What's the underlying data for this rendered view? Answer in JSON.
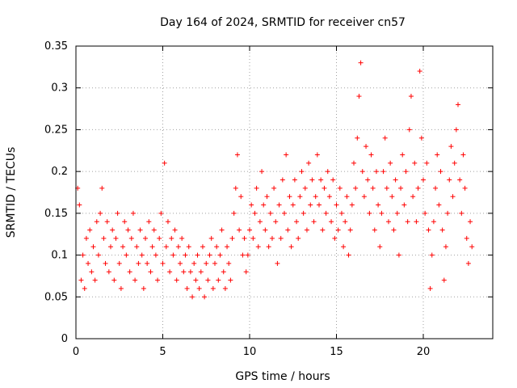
{
  "chart_data": {
    "type": "scatter",
    "title": "Day 164 of 2024, SRMTID for receiver cn57",
    "xlabel": "GPS time / hours",
    "ylabel": "SRMTID / TECUs",
    "xlim": [
      0,
      24
    ],
    "ylim": [
      0,
      0.35
    ],
    "xticks": [
      0,
      5,
      10,
      15,
      20
    ],
    "yticks": [
      0,
      0.05,
      0.1,
      0.15,
      0.2,
      0.25,
      0.3,
      0.35
    ],
    "grid": true,
    "marker": "+",
    "color": "#ff0000",
    "series": [
      {
        "name": "SRMTID",
        "points": [
          [
            0.1,
            0.18
          ],
          [
            0.2,
            0.16
          ],
          [
            0.3,
            0.07
          ],
          [
            0.4,
            0.1
          ],
          [
            0.5,
            0.06
          ],
          [
            0.6,
            0.12
          ],
          [
            0.7,
            0.09
          ],
          [
            0.8,
            0.13
          ],
          [
            0.9,
            0.08
          ],
          [
            1.0,
            0.11
          ],
          [
            1.1,
            0.07
          ],
          [
            1.2,
            0.14
          ],
          [
            1.3,
            0.1
          ],
          [
            1.4,
            0.15
          ],
          [
            1.5,
            0.18
          ],
          [
            1.6,
            0.12
          ],
          [
            1.7,
            0.09
          ],
          [
            1.8,
            0.14
          ],
          [
            1.9,
            0.08
          ],
          [
            2.0,
            0.11
          ],
          [
            2.1,
            0.13
          ],
          [
            2.2,
            0.07
          ],
          [
            2.3,
            0.12
          ],
          [
            2.4,
            0.15
          ],
          [
            2.5,
            0.09
          ],
          [
            2.6,
            0.06
          ],
          [
            2.7,
            0.11
          ],
          [
            2.8,
            0.14
          ],
          [
            2.9,
            0.1
          ],
          [
            3.0,
            0.13
          ],
          [
            3.1,
            0.08
          ],
          [
            3.2,
            0.12
          ],
          [
            3.3,
            0.15
          ],
          [
            3.4,
            0.07
          ],
          [
            3.5,
            0.11
          ],
          [
            3.6,
            0.09
          ],
          [
            3.7,
            0.13
          ],
          [
            3.8,
            0.1
          ],
          [
            3.9,
            0.06
          ],
          [
            4.0,
            0.12
          ],
          [
            4.1,
            0.09
          ],
          [
            4.2,
            0.14
          ],
          [
            4.3,
            0.08
          ],
          [
            4.4,
            0.11
          ],
          [
            4.5,
            0.13
          ],
          [
            4.6,
            0.1
          ],
          [
            4.7,
            0.07
          ],
          [
            4.8,
            0.12
          ],
          [
            4.9,
            0.15
          ],
          [
            5.0,
            0.09
          ],
          [
            5.1,
            0.21
          ],
          [
            5.2,
            0.11
          ],
          [
            5.3,
            0.14
          ],
          [
            5.4,
            0.08
          ],
          [
            5.5,
            0.12
          ],
          [
            5.6,
            0.1
          ],
          [
            5.7,
            0.13
          ],
          [
            5.8,
            0.07
          ],
          [
            5.9,
            0.11
          ],
          [
            6.0,
            0.09
          ],
          [
            6.1,
            0.12
          ],
          [
            6.2,
            0.08
          ],
          [
            6.3,
            0.1
          ],
          [
            6.4,
            0.06
          ],
          [
            6.5,
            0.11
          ],
          [
            6.6,
            0.08
          ],
          [
            6.7,
            0.05
          ],
          [
            6.8,
            0.09
          ],
          [
            6.9,
            0.07
          ],
          [
            7.0,
            0.1
          ],
          [
            7.1,
            0.06
          ],
          [
            7.2,
            0.08
          ],
          [
            7.3,
            0.11
          ],
          [
            7.4,
            0.05
          ],
          [
            7.5,
            0.09
          ],
          [
            7.6,
            0.07
          ],
          [
            7.7,
            0.1
          ],
          [
            7.8,
            0.12
          ],
          [
            7.9,
            0.06
          ],
          [
            8.0,
            0.09
          ],
          [
            8.1,
            0.11
          ],
          [
            8.2,
            0.07
          ],
          [
            8.3,
            0.1
          ],
          [
            8.4,
            0.13
          ],
          [
            8.5,
            0.08
          ],
          [
            8.6,
            0.06
          ],
          [
            8.7,
            0.11
          ],
          [
            8.8,
            0.09
          ],
          [
            8.9,
            0.07
          ],
          [
            9.0,
            0.12
          ],
          [
            9.1,
            0.15
          ],
          [
            9.2,
            0.18
          ],
          [
            9.3,
            0.22
          ],
          [
            9.4,
            0.13
          ],
          [
            9.5,
            0.17
          ],
          [
            9.6,
            0.1
          ],
          [
            9.7,
            0.12
          ],
          [
            9.8,
            0.08
          ],
          [
            9.9,
            0.1
          ],
          [
            10.0,
            0.13
          ],
          [
            10.1,
            0.16
          ],
          [
            10.2,
            0.12
          ],
          [
            10.3,
            0.15
          ],
          [
            10.4,
            0.18
          ],
          [
            10.5,
            0.11
          ],
          [
            10.6,
            0.14
          ],
          [
            10.7,
            0.2
          ],
          [
            10.8,
            0.16
          ],
          [
            10.9,
            0.13
          ],
          [
            11.0,
            0.17
          ],
          [
            11.1,
            0.11
          ],
          [
            11.2,
            0.15
          ],
          [
            11.3,
            0.12
          ],
          [
            11.4,
            0.18
          ],
          [
            11.5,
            0.14
          ],
          [
            11.6,
            0.09
          ],
          [
            11.7,
            0.16
          ],
          [
            11.8,
            0.12
          ],
          [
            11.9,
            0.19
          ],
          [
            12.0,
            0.15
          ],
          [
            12.1,
            0.22
          ],
          [
            12.2,
            0.13
          ],
          [
            12.3,
            0.17
          ],
          [
            12.4,
            0.11
          ],
          [
            12.5,
            0.16
          ],
          [
            12.6,
            0.19
          ],
          [
            12.7,
            0.14
          ],
          [
            12.8,
            0.12
          ],
          [
            12.9,
            0.17
          ],
          [
            13.0,
            0.2
          ],
          [
            13.1,
            0.15
          ],
          [
            13.2,
            0.18
          ],
          [
            13.3,
            0.13
          ],
          [
            13.4,
            0.21
          ],
          [
            13.5,
            0.16
          ],
          [
            13.6,
            0.19
          ],
          [
            13.7,
            0.14
          ],
          [
            13.8,
            0.17
          ],
          [
            13.9,
            0.22
          ],
          [
            14.0,
            0.16
          ],
          [
            14.1,
            0.19
          ],
          [
            14.2,
            0.13
          ],
          [
            14.3,
            0.18
          ],
          [
            14.4,
            0.15
          ],
          [
            14.5,
            0.2
          ],
          [
            14.6,
            0.17
          ],
          [
            14.7,
            0.14
          ],
          [
            14.8,
            0.19
          ],
          [
            14.9,
            0.12
          ],
          [
            15.0,
            0.16
          ],
          [
            15.1,
            0.13
          ],
          [
            15.2,
            0.18
          ],
          [
            15.3,
            0.15
          ],
          [
            15.4,
            0.11
          ],
          [
            15.5,
            0.14
          ],
          [
            15.6,
            0.17
          ],
          [
            15.7,
            0.1
          ],
          [
            15.8,
            0.13
          ],
          [
            15.9,
            0.16
          ],
          [
            16.0,
            0.21
          ],
          [
            16.1,
            0.18
          ],
          [
            16.2,
            0.24
          ],
          [
            16.3,
            0.29
          ],
          [
            16.4,
            0.33
          ],
          [
            16.5,
            0.2
          ],
          [
            16.6,
            0.17
          ],
          [
            16.7,
            0.23
          ],
          [
            16.8,
            0.19
          ],
          [
            16.9,
            0.15
          ],
          [
            17.0,
            0.22
          ],
          [
            17.1,
            0.18
          ],
          [
            17.2,
            0.13
          ],
          [
            17.3,
            0.2
          ],
          [
            17.4,
            0.16
          ],
          [
            17.5,
            0.11
          ],
          [
            17.6,
            0.15
          ],
          [
            17.7,
            0.2
          ],
          [
            17.8,
            0.24
          ],
          [
            17.9,
            0.18
          ],
          [
            18.0,
            0.14
          ],
          [
            18.1,
            0.21
          ],
          [
            18.2,
            0.17
          ],
          [
            18.3,
            0.13
          ],
          [
            18.4,
            0.19
          ],
          [
            18.5,
            0.15
          ],
          [
            18.6,
            0.1
          ],
          [
            18.7,
            0.18
          ],
          [
            18.8,
            0.22
          ],
          [
            18.9,
            0.16
          ],
          [
            19.0,
            0.2
          ],
          [
            19.1,
            0.14
          ],
          [
            19.2,
            0.25
          ],
          [
            19.3,
            0.29
          ],
          [
            19.4,
            0.17
          ],
          [
            19.5,
            0.21
          ],
          [
            19.6,
            0.14
          ],
          [
            19.7,
            0.18
          ],
          [
            19.8,
            0.32
          ],
          [
            19.9,
            0.24
          ],
          [
            20.0,
            0.19
          ],
          [
            20.1,
            0.15
          ],
          [
            20.2,
            0.21
          ],
          [
            20.3,
            0.13
          ],
          [
            20.4,
            0.06
          ],
          [
            20.5,
            0.1
          ],
          [
            20.6,
            0.14
          ],
          [
            20.7,
            0.18
          ],
          [
            20.8,
            0.22
          ],
          [
            20.9,
            0.16
          ],
          [
            21.0,
            0.2
          ],
          [
            21.1,
            0.13
          ],
          [
            21.2,
            0.07
          ],
          [
            21.3,
            0.11
          ],
          [
            21.4,
            0.15
          ],
          [
            21.5,
            0.19
          ],
          [
            21.6,
            0.23
          ],
          [
            21.7,
            0.17
          ],
          [
            21.8,
            0.21
          ],
          [
            21.9,
            0.25
          ],
          [
            22.0,
            0.28
          ],
          [
            22.1,
            0.19
          ],
          [
            22.2,
            0.15
          ],
          [
            22.3,
            0.22
          ],
          [
            22.4,
            0.18
          ],
          [
            22.5,
            0.12
          ],
          [
            22.6,
            0.09
          ],
          [
            22.7,
            0.14
          ],
          [
            22.8,
            0.11
          ]
        ]
      }
    ]
  }
}
